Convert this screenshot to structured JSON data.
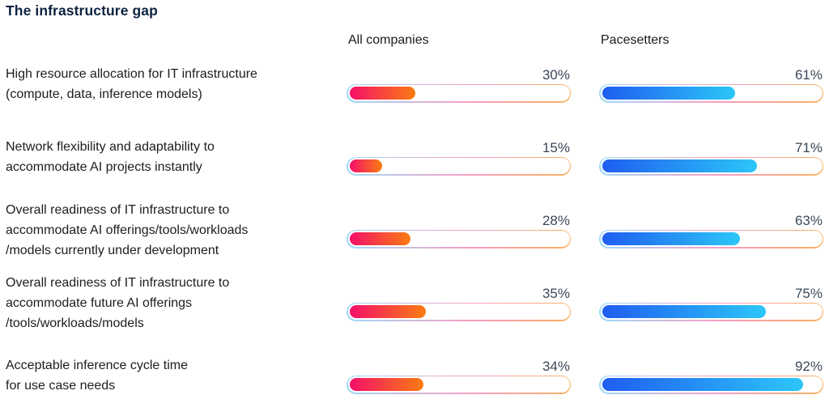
{
  "title": "The infrastructure gap",
  "columns": [
    "All companies",
    "Pacesetters"
  ],
  "colors": {
    "title_color": "#0d2340",
    "label_color": "#1d1d1d",
    "value_color": "#3b4859",
    "red_start": "#f50f6a",
    "red_end": "#fa7c11",
    "blue_start": "#1f5ef0",
    "blue_end": "#2cc6f8",
    "track_border_left": "#9fd9f8",
    "track_border_mid": "#f79ec4",
    "track_border_right": "#f9b05f"
  },
  "chart_data": {
    "type": "bar",
    "title": "The infrastructure gap",
    "value_format": "percent",
    "xlim": [
      0,
      100
    ],
    "legend_position": "column-headers",
    "grid": false,
    "categories": [
      "High resource allocation for IT infrastructure (compute, data, inference models)",
      "Network flexibility and adaptability to accommodate AI projects instantly",
      "Overall readiness of IT infrastructure to accommodate AI offerings/tools/workloads /models currently under development",
      "Overall readiness of IT infrastructure to accommodate future AI offerings /tools/workloads/models",
      "Acceptable inference cycle time for use case needs"
    ],
    "series": [
      {
        "name": "All companies",
        "values": [
          30,
          15,
          28,
          35,
          34
        ]
      },
      {
        "name": "Pacesetters",
        "values": [
          61,
          71,
          63,
          75,
          92
        ]
      }
    ],
    "rows": [
      {
        "label_lines": [
          "High resource allocation for IT infrastructure",
          "(compute, data, inference models)"
        ],
        "all_companies": 30,
        "all_companies_display": "30%",
        "pacesetters": 61,
        "pacesetters_display": "61%"
      },
      {
        "label_lines": [
          "Network flexibility and adaptability to",
          "accommodate AI projects instantly"
        ],
        "all_companies": 15,
        "all_companies_display": "15%",
        "pacesetters": 71,
        "pacesetters_display": "71%"
      },
      {
        "label_lines": [
          "Overall readiness of IT infrastructure to",
          "accommodate AI offerings/tools/workloads",
          "/models currently under development"
        ],
        "all_companies": 28,
        "all_companies_display": "28%",
        "pacesetters": 63,
        "pacesetters_display": "63%"
      },
      {
        "label_lines": [
          "Overall readiness of IT infrastructure to",
          "accommodate future AI offerings",
          "/tools/workloads/models"
        ],
        "all_companies": 35,
        "all_companies_display": "35%",
        "pacesetters": 75,
        "pacesetters_display": "75%"
      },
      {
        "label_lines": [
          "Acceptable inference cycle time",
          "for use case needs"
        ],
        "all_companies": 34,
        "all_companies_display": "34%",
        "pacesetters": 92,
        "pacesetters_display": "92%"
      }
    ]
  }
}
